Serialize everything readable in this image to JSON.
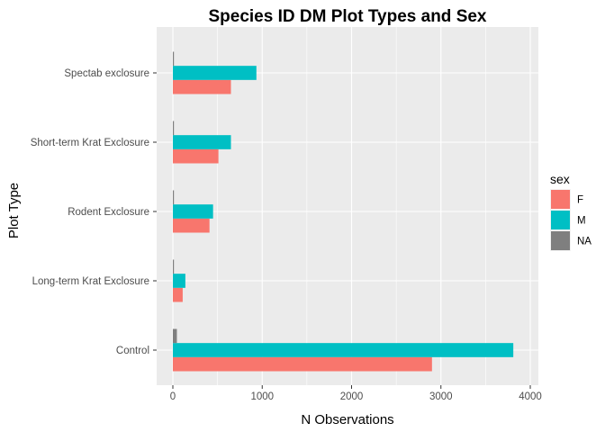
{
  "chart_data": {
    "type": "bar",
    "orientation": "horizontal",
    "position": "dodge",
    "title": "Species ID DM Plot Types and Sex",
    "xlabel": "N Observations",
    "ylabel": "Plot Type",
    "xlim": [
      0,
      4000
    ],
    "x_ticks": [
      0,
      1000,
      2000,
      3000,
      4000
    ],
    "categories": [
      "Spectab exclosure",
      "Short-term Krat Exclosure",
      "Rodent Exclosure",
      "Long-term Krat Exclosure",
      "Control"
    ],
    "series": [
      {
        "name": "F",
        "color": "#F8766D",
        "values": [
          650,
          510,
          410,
          110,
          2900
        ]
      },
      {
        "name": "M",
        "color": "#00BFC4",
        "values": [
          935,
          650,
          450,
          140,
          3810
        ]
      },
      {
        "name": "NA",
        "color": "#7F7F7F",
        "values": [
          5,
          5,
          5,
          5,
          45
        ]
      }
    ],
    "legend": {
      "title": "sex",
      "position": "right"
    },
    "grid": true,
    "panel_background": "#EBEBEB",
    "grid_color": "#FFFFFF"
  }
}
